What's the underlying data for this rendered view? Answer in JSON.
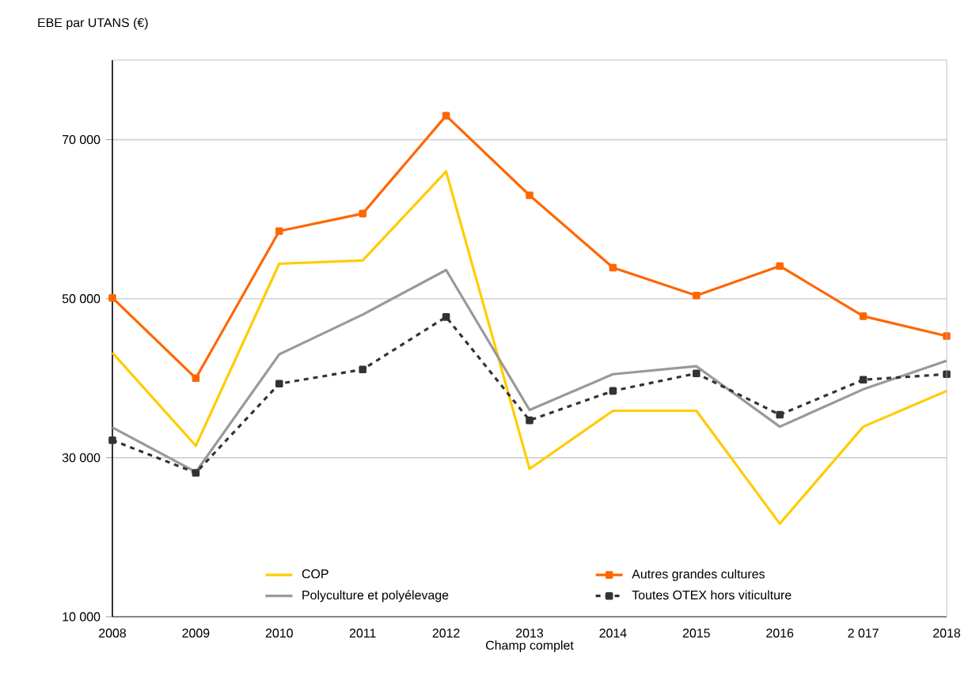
{
  "chart_data": {
    "type": "line",
    "ylabel": "EBE par UTANS (€)",
    "xlabel": "Champ complet",
    "categories": [
      "2008",
      "2009",
      "2010",
      "2011",
      "2012",
      "2013",
      "2014",
      "2015",
      "2016",
      "2 017",
      "2018"
    ],
    "ylim": [
      10000,
      80000
    ],
    "yticks": [
      {
        "value": 10000,
        "label": "10 000"
      },
      {
        "value": 30000,
        "label": "30 000"
      },
      {
        "value": 50000,
        "label": "50 000"
      },
      {
        "value": 70000,
        "label": "70 000"
      }
    ],
    "grid": "y",
    "legend": "bottom",
    "series": [
      {
        "name": "COP",
        "color": "#ffcc00",
        "marker": "none",
        "line_style": "solid",
        "values": [
          43200,
          31500,
          54400,
          54800,
          66000,
          28600,
          35900,
          35900,
          21700,
          33900,
          38400
        ]
      },
      {
        "name": "Autres grandes cultures",
        "color": "#ff6600",
        "marker": "square",
        "line_style": "solid",
        "values": [
          50100,
          40000,
          58500,
          60700,
          73000,
          63000,
          53900,
          50400,
          54100,
          47800,
          45300
        ]
      },
      {
        "name": "Polyculture et polyélevage",
        "color": "#999999",
        "marker": "none",
        "line_style": "solid",
        "values": [
          33800,
          28200,
          43000,
          48000,
          53600,
          36000,
          40500,
          41500,
          33900,
          38600,
          42200
        ]
      },
      {
        "name": "Toutes OTEX hors viticulture",
        "color": "#333333",
        "marker": "square",
        "line_style": "dashed",
        "values": [
          32200,
          28100,
          39300,
          41100,
          47700,
          34700,
          38400,
          40600,
          35400,
          39800,
          40500
        ]
      }
    ]
  }
}
